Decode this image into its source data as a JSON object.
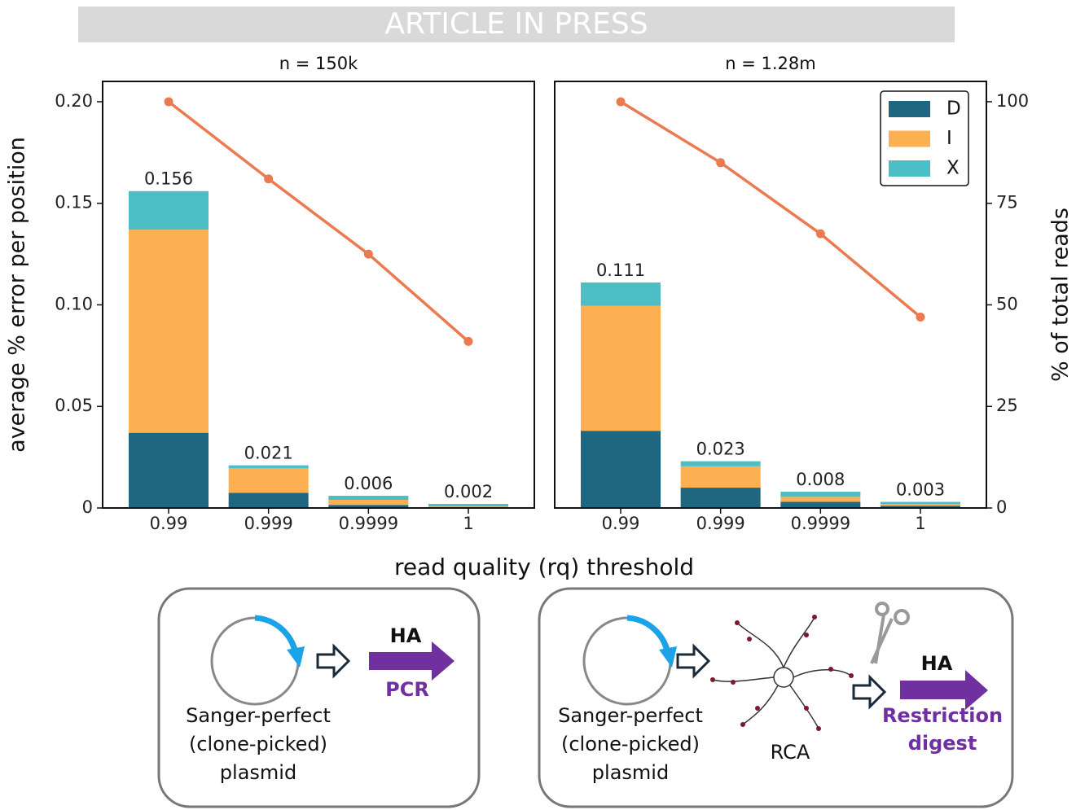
{
  "banner": "ARTICLE IN PRESS",
  "chart_data": [
    {
      "type": "bar",
      "subtitle": "n = 150k",
      "ylabel": "average % error per position",
      "xlabel": "read quality (rq) threshold",
      "categories": [
        "0.99",
        "0.999",
        "0.9999",
        "1"
      ],
      "series": [
        {
          "name": "D",
          "color": "#1f6680",
          "values": [
            0.037,
            0.0075,
            0.0015,
            0.0003
          ]
        },
        {
          "name": "I",
          "color": "#fdb052",
          "values": [
            0.1,
            0.012,
            0.0025,
            0.0004
          ]
        },
        {
          "name": "X",
          "color": "#4dbdc6",
          "values": [
            0.019,
            0.0015,
            0.002,
            0.0013
          ]
        },
        {
          "type": "line",
          "axis": "y2",
          "color": "#ec7a50",
          "values": [
            100,
            81,
            62.5,
            41
          ]
        }
      ],
      "totals": [
        0.156,
        0.021,
        0.006,
        0.002
      ],
      "ylim": [
        0,
        0.21
      ],
      "yticks": [
        0,
        0.05,
        {
          "value": 0.1,
          "label": "0.10"
        },
        0.15,
        {
          "value": 0.2,
          "label": "0.20"
        }
      ],
      "y2lim": [
        0,
        105
      ]
    },
    {
      "type": "bar",
      "subtitle": "n = 1.28m",
      "y2label": "% of total reads",
      "categories": [
        "0.99",
        "0.999",
        "0.9999",
        "1"
      ],
      "series": [
        {
          "name": "D",
          "color": "#1f6680",
          "values": [
            0.038,
            0.01,
            0.003,
            0.001
          ]
        },
        {
          "name": "I",
          "color": "#fdb052",
          "values": [
            0.0615,
            0.0105,
            0.0025,
            0.001
          ]
        },
        {
          "name": "X",
          "color": "#4dbdc6",
          "values": [
            0.0115,
            0.0025,
            0.0025,
            0.001
          ]
        },
        {
          "type": "line",
          "axis": "y2",
          "color": "#ec7a50",
          "values": [
            100,
            85,
            67.5,
            47
          ]
        }
      ],
      "totals": [
        0.111,
        0.023,
        0.008,
        0.003
      ],
      "ylim": [
        0,
        0.21
      ],
      "y2lim": [
        0,
        105
      ],
      "y2ticks": [
        0,
        25,
        50,
        75,
        100
      ],
      "legend": "upper right"
    }
  ],
  "diagram": {
    "panels": [
      {
        "plasmid_label": [
          "Sanger-perfect",
          "(clone-picked)",
          "plasmid"
        ],
        "product": "HA",
        "method": [
          "PCR"
        ]
      },
      {
        "plasmid_label": [
          "Sanger-perfect",
          "(clone-picked)",
          "plasmid"
        ],
        "intermediate": "RCA",
        "product": "HA",
        "method": [
          "Restriction",
          "digest"
        ]
      }
    ]
  }
}
